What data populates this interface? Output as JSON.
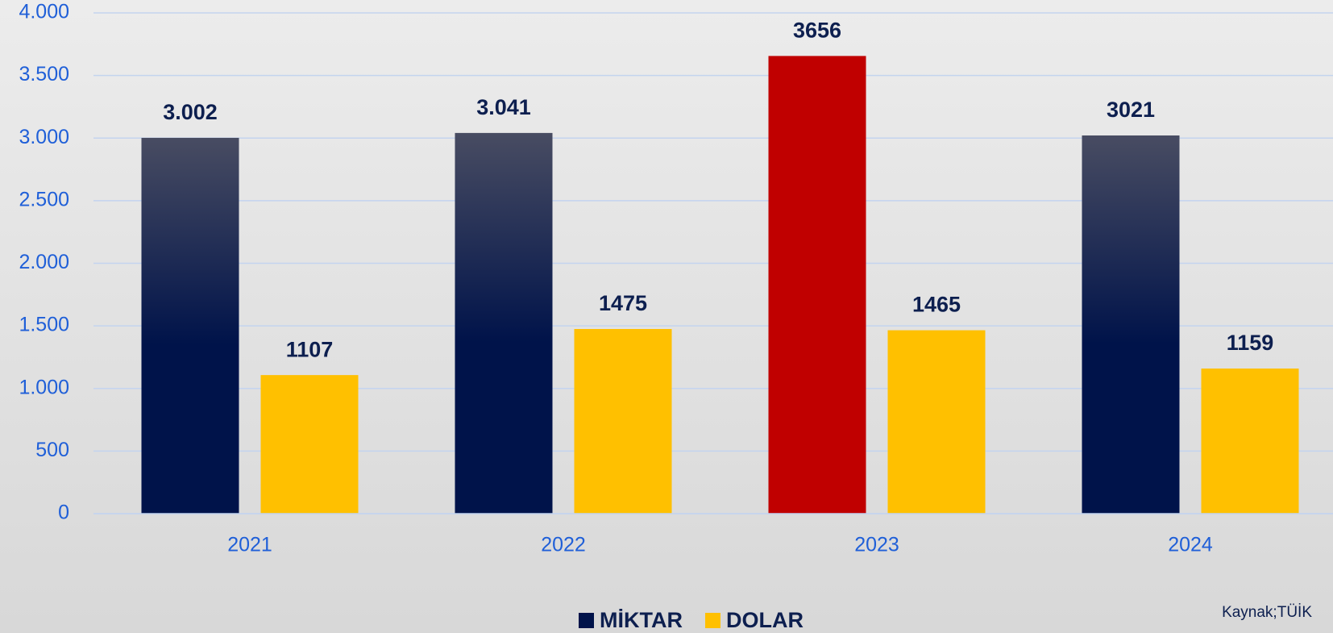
{
  "chart_data": {
    "type": "bar",
    "categories": [
      "2021",
      "2022",
      "2023",
      "2024"
    ],
    "series": [
      {
        "name": "MİKTAR",
        "color": "#00134a",
        "colors": [
          "#00134a",
          "#00134a",
          "#c00000",
          "#00134a"
        ],
        "values": [
          3002,
          3041,
          3656,
          3021
        ],
        "value_labels": [
          "3.002",
          "3.041",
          "3656",
          "3021"
        ]
      },
      {
        "name": "DOLAR",
        "color": "#ffc000",
        "values": [
          1107,
          1475,
          1465,
          1159
        ]
      }
    ],
    "ylim": [
      0,
      4000
    ],
    "yticks": [
      0,
      500,
      {
        "value": 1000,
        "label": "1.000"
      },
      {
        "value": 1500,
        "label": "1.500"
      },
      {
        "value": 2000,
        "label": "2.000"
      },
      {
        "value": 2500,
        "label": "2.500"
      },
      {
        "value": 3000,
        "label": "3.000"
      },
      {
        "value": 3500,
        "label": "3.500"
      },
      {
        "value": 4000,
        "label": "4.000"
      }
    ],
    "grid": true,
    "legend": "bottom",
    "source": "Kaynak;TÜİK"
  }
}
